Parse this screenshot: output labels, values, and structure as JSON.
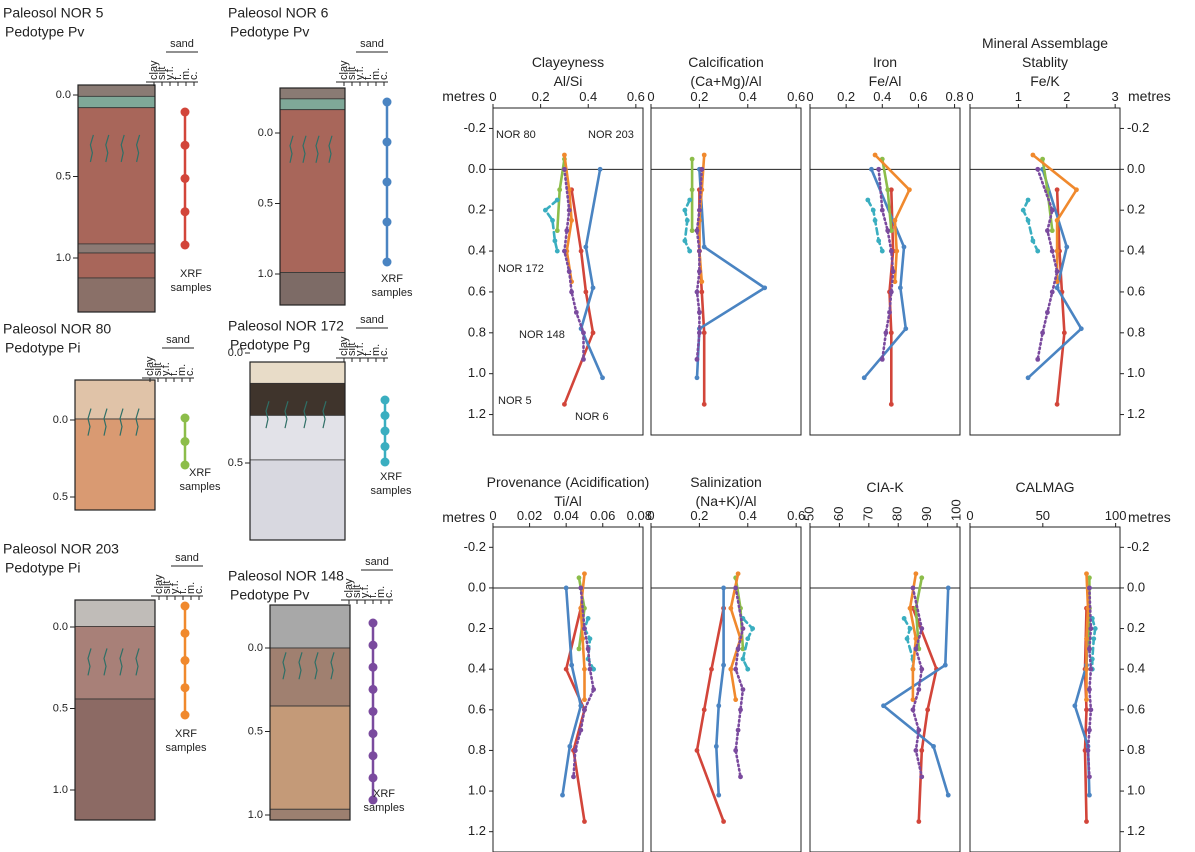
{
  "chart_data": {
    "type": "line",
    "ylabel": "metres",
    "ylim": [
      1.3,
      -0.3
    ],
    "yticks": [
      -0.2,
      {
        "value": 0,
        "label": "0.0"
      },
      0.2,
      0.4,
      0.6,
      0.8,
      {
        "value": 1,
        "label": "1.0"
      },
      1.2
    ],
    "hline": 0,
    "series": [
      {
        "name": "NOR 5",
        "color": "#d2453a",
        "style": "solid",
        "depths": [
          0.1,
          0.4,
          0.6,
          0.8,
          1.15
        ]
      },
      {
        "name": "NOR 6",
        "color": "#4a84c2",
        "style": "solid",
        "depths": [
          0.0,
          0.38,
          0.58,
          0.78,
          1.02
        ]
      },
      {
        "name": "NOR 80",
        "color": "#8cbd4a",
        "style": "solid",
        "depths": [
          -0.05,
          0.1,
          0.3
        ]
      },
      {
        "name": "NOR 172",
        "color": "#3aaec0",
        "style": "dashed",
        "depths": [
          0.15,
          0.2,
          0.25,
          0.35,
          0.4
        ]
      },
      {
        "name": "NOR 203",
        "color": "#f0892d",
        "style": "solid",
        "depths": [
          -0.07,
          0.1,
          0.25,
          0.4,
          0.55
        ]
      },
      {
        "name": "NOR 148",
        "color": "#7a4a9e",
        "style": "dotted",
        "depths": [
          0.0,
          0.2,
          0.3,
          0.4,
          0.5,
          0.6,
          0.7,
          0.8,
          0.93
        ]
      }
    ],
    "panels": [
      {
        "title_lines": [
          "Clayeyness",
          "Al/Si"
        ],
        "xlim": [
          0,
          0.63
        ],
        "xticks": [
          0,
          0.2,
          0.4,
          0.6
        ],
        "values": [
          [
            0.33,
            0.37,
            0.39,
            0.42,
            0.3
          ],
          [
            0.45,
            0.39,
            0.42,
            0.37,
            0.46
          ],
          [
            0.3,
            0.28,
            0.27
          ],
          [
            0.27,
            0.22,
            0.25,
            0.26,
            0.27
          ],
          [
            0.3,
            0.32,
            0.33,
            0.31,
            0.33
          ],
          [
            0.3,
            0.32,
            0.31,
            0.3,
            0.32,
            0.33,
            0.35,
            0.38,
            0.38
          ]
        ]
      },
      {
        "title_lines": [
          "Calcification",
          "(Ca+Mg)/Al"
        ],
        "xlim": [
          0,
          0.62
        ],
        "xticks": [
          0,
          0.2,
          0.4,
          0.6
        ],
        "values": [
          [
            0.2,
            0.2,
            0.21,
            0.22,
            0.22
          ],
          [
            0.2,
            0.22,
            0.47,
            0.2,
            0.19
          ],
          [
            0.17,
            0.17,
            0.17
          ],
          [
            0.16,
            0.14,
            0.15,
            0.14,
            0.16
          ],
          [
            0.22,
            0.21,
            0.2,
            0.2,
            0.21
          ],
          [
            0.21,
            0.2,
            0.19,
            0.2,
            0.2,
            0.19,
            0.2,
            0.2,
            0.19
          ]
        ]
      },
      {
        "title_lines": [
          "Iron",
          "Fe/Al"
        ],
        "xlim": [
          0,
          0.83
        ],
        "xticks": [
          0,
          0.2,
          0.4,
          0.6,
          0.8
        ],
        "values": [
          [
            0.45,
            0.46,
            0.44,
            0.45,
            0.45
          ],
          [
            0.34,
            0.52,
            0.5,
            0.53,
            0.3
          ],
          [
            0.4,
            0.43,
            0.45
          ],
          [
            0.32,
            0.35,
            0.36,
            0.38,
            0.4
          ],
          [
            0.36,
            0.55,
            0.47,
            0.48,
            0.47
          ],
          [
            0.38,
            0.4,
            0.43,
            0.45,
            0.46,
            0.45,
            0.44,
            0.42,
            0.4
          ]
        ]
      },
      {
        "title_lines": [
          "Mineral Assemblage",
          "Stablity",
          "Fe/K"
        ],
        "xlim": [
          0,
          3.1
        ],
        "xticks": [
          0,
          1,
          2,
          3
        ],
        "values": [
          [
            1.8,
            1.85,
            1.9,
            1.95,
            1.8
          ],
          [
            1.5,
            2.0,
            1.8,
            2.3,
            1.2
          ],
          [
            1.5,
            1.6,
            1.7
          ],
          [
            1.2,
            1.1,
            1.2,
            1.3,
            1.4
          ],
          [
            1.3,
            2.2,
            1.8,
            1.8,
            1.8
          ],
          [
            1.4,
            1.7,
            1.6,
            1.7,
            1.8,
            1.7,
            1.6,
            1.5,
            1.4
          ]
        ]
      },
      {
        "title_lines": [
          "Provenance (Acidification)",
          "Ti/Al"
        ],
        "xlim": [
          0,
          0.082
        ],
        "xticks": [
          0,
          0.02,
          0.04,
          0.06,
          0.08
        ],
        "values": [
          [
            0.048,
            0.04,
            0.05,
            0.044,
            0.05
          ],
          [
            0.04,
            0.043,
            0.048,
            0.042,
            0.038
          ],
          [
            0.047,
            0.05,
            0.047
          ],
          [
            0.052,
            0.05,
            0.053,
            0.052,
            0.055
          ],
          [
            0.05,
            0.048,
            0.049,
            0.05,
            0.05
          ],
          [
            0.048,
            0.05,
            0.052,
            0.053,
            0.055,
            0.05,
            0.048,
            0.045,
            0.044
          ]
        ]
      },
      {
        "title_lines": [
          "Salinization",
          "(Na+K)/Al"
        ],
        "xlim": [
          0,
          0.62
        ],
        "xticks": [
          0,
          0.2,
          0.4,
          0.6
        ],
        "values": [
          [
            0.3,
            0.25,
            0.22,
            0.19,
            0.3
          ],
          [
            0.3,
            0.3,
            0.28,
            0.27,
            0.28
          ],
          [
            0.35,
            0.37,
            0.38
          ],
          [
            0.38,
            0.42,
            0.4,
            0.38,
            0.4
          ],
          [
            0.36,
            0.33,
            0.37,
            0.33,
            0.35
          ],
          [
            0.35,
            0.38,
            0.36,
            0.35,
            0.38,
            0.37,
            0.36,
            0.35,
            0.37
          ]
        ]
      },
      {
        "title_lines": [
          "CIA-K"
        ],
        "xlim": [
          50,
          101
        ],
        "xticks": [
          50,
          60,
          70,
          80,
          90,
          100
        ],
        "xtick_rotation": -90,
        "values": [
          [
            85,
            93,
            90,
            88,
            87
          ],
          [
            97,
            96,
            75,
            92,
            97
          ],
          [
            88,
            86,
            87
          ],
          [
            82,
            84,
            83,
            85,
            85
          ],
          [
            86,
            84,
            86,
            85,
            85
          ],
          [
            85,
            88,
            86,
            88,
            87,
            85,
            87,
            86,
            88
          ]
        ]
      },
      {
        "title_lines": [
          "CALMAG"
        ],
        "xlim": [
          0,
          103
        ],
        "xticks": [
          0,
          50,
          100
        ],
        "values": [
          [
            80,
            79,
            80,
            79,
            80
          ],
          [
            82,
            80,
            72,
            81,
            82
          ],
          [
            82,
            82,
            82
          ],
          [
            84,
            86,
            85,
            84,
            84
          ],
          [
            80,
            81,
            80,
            80,
            80
          ],
          [
            82,
            83,
            82,
            83,
            82,
            83,
            82,
            81,
            82
          ]
        ]
      }
    ]
  },
  "profiles": {
    "grain_sizes": [
      "clay",
      "silt",
      "v.f.",
      "f.",
      "m.",
      "c."
    ],
    "sand_label": "sand",
    "sample_label_lines": [
      "XRF",
      "samples"
    ],
    "items": [
      {
        "title": "Paleosol NOR 5",
        "pedotype": "Pedotype Pv",
        "depth_ticks": [
          {
            "value": 0,
            "label": "0.0"
          },
          0.5,
          {
            "value": 1,
            "label": "1.0"
          }
        ]
      },
      {
        "title": "Paleosol NOR 6",
        "pedotype": "Pedotype Pv",
        "depth_ticks": [
          {
            "value": 0,
            "label": "0.0"
          },
          0.5,
          {
            "value": 1,
            "label": "1.0"
          }
        ]
      },
      {
        "title": "Paleosol NOR 80",
        "pedotype": "Pedotype Pi",
        "depth_ticks": [
          {
            "value": 0,
            "label": "0.0"
          },
          0.5
        ]
      },
      {
        "title": "Paleosol NOR 172",
        "pedotype": "Pedotype Pg",
        "depth_ticks": [
          {
            "value": 0,
            "label": "0.0"
          },
          0.5
        ]
      },
      {
        "title": "Paleosol NOR 203",
        "pedotype": "Pedotype Pi",
        "depth_ticks": [
          {
            "value": 0,
            "label": "0.0"
          },
          0.5,
          {
            "value": 1,
            "label": "1.0"
          }
        ]
      },
      {
        "title": "Paleosol NOR 148",
        "pedotype": "Pedotype Pv",
        "depth_ticks": [
          {
            "value": 0,
            "label": "0.0"
          },
          0.5,
          {
            "value": 1,
            "label": "1.0"
          }
        ]
      }
    ]
  }
}
